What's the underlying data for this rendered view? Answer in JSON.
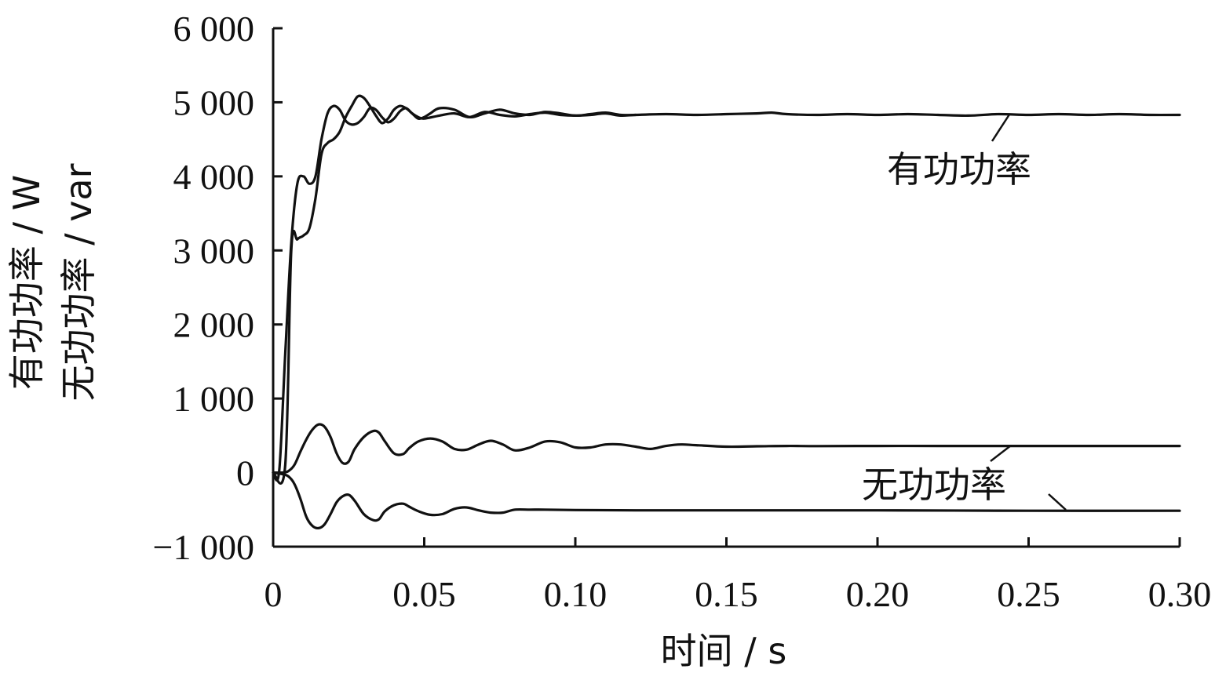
{
  "chart_data": {
    "type": "line",
    "xlabel": "时间 / s",
    "ylabel_lines": [
      "有功功率 / W",
      "无功功率 / var"
    ],
    "xlim": [
      0,
      0.3
    ],
    "ylim": [
      -1000,
      6000
    ],
    "x_ticks": [
      0,
      0.05,
      0.1,
      0.15,
      0.2,
      0.25,
      0.3
    ],
    "x_tick_labels": [
      "0",
      "0.05",
      "0.10",
      "0.15",
      "0.20",
      "0.25",
      "0.30"
    ],
    "y_ticks": [
      -1000,
      0,
      1000,
      2000,
      3000,
      4000,
      5000,
      6000
    ],
    "y_tick_labels": [
      "−1 000",
      "0",
      "1 000",
      "2 000",
      "3 000",
      "4 000",
      "5 000",
      "6 000"
    ],
    "grid": false,
    "annotations": [
      {
        "text": "有功功率",
        "points_to": "active-power"
      },
      {
        "text": "无功功率",
        "points_to": "reactive-power"
      }
    ],
    "series": [
      {
        "id": "active-power-1",
        "x": [
          0,
          0.002,
          0.004,
          0.006,
          0.008,
          0.01,
          0.012,
          0.014,
          0.016,
          0.018,
          0.02,
          0.022,
          0.024,
          0.026,
          0.028,
          0.03,
          0.032,
          0.034,
          0.036,
          0.038,
          0.04,
          0.042,
          0.044,
          0.046,
          0.048,
          0.05,
          0.055,
          0.06,
          0.065,
          0.07,
          0.075,
          0.08,
          0.085,
          0.09,
          0.095,
          0.1,
          0.105,
          0.11,
          0.115,
          0.12,
          0.13,
          0.14,
          0.15,
          0.16,
          0.165,
          0.17,
          0.18,
          0.19,
          0.2,
          0.21,
          0.22,
          0.23,
          0.24,
          0.25,
          0.26,
          0.27,
          0.28,
          0.29,
          0.3
        ],
        "y": [
          0,
          20,
          1600,
          3100,
          3900,
          4000,
          3900,
          4000,
          4500,
          4850,
          4950,
          4900,
          4750,
          4700,
          4720,
          4800,
          4920,
          4900,
          4800,
          4730,
          4780,
          4880,
          4920,
          4850,
          4800,
          4780,
          4820,
          4850,
          4800,
          4870,
          4830,
          4810,
          4840,
          4860,
          4830,
          4820,
          4830,
          4850,
          4820,
          4830,
          4840,
          4830,
          4840,
          4850,
          4860,
          4840,
          4830,
          4840,
          4830,
          4840,
          4830,
          4820,
          4840,
          4830,
          4840,
          4830,
          4840,
          4830,
          4830
        ]
      },
      {
        "id": "active-power-2",
        "x": [
          0,
          0.004,
          0.006,
          0.008,
          0.01,
          0.012,
          0.014,
          0.016,
          0.018,
          0.02,
          0.022,
          0.024,
          0.026,
          0.028,
          0.03,
          0.032,
          0.034,
          0.036,
          0.038,
          0.04,
          0.042,
          0.044,
          0.046,
          0.048,
          0.05,
          0.052,
          0.055,
          0.06,
          0.065,
          0.07,
          0.075,
          0.08,
          0.085,
          0.09,
          0.095,
          0.1,
          0.105,
          0.11,
          0.115,
          0.12
        ],
        "y": [
          0,
          100,
          3000,
          3150,
          3200,
          3300,
          3700,
          4300,
          4450,
          4500,
          4600,
          4800,
          4950,
          5080,
          5060,
          4950,
          4820,
          4720,
          4780,
          4900,
          4950,
          4920,
          4850,
          4780,
          4800,
          4850,
          4920,
          4900,
          4800,
          4850,
          4900,
          4850,
          4830,
          4870,
          4850,
          4820,
          4840,
          4860,
          4830,
          4830
        ]
      },
      {
        "id": "reactive-power-upper",
        "x": [
          0,
          0.003,
          0.005,
          0.007,
          0.009,
          0.011,
          0.013,
          0.015,
          0.017,
          0.019,
          0.021,
          0.023,
          0.025,
          0.027,
          0.03,
          0.033,
          0.035,
          0.037,
          0.04,
          0.043,
          0.045,
          0.048,
          0.052,
          0.056,
          0.06,
          0.064,
          0.068,
          0.072,
          0.076,
          0.08,
          0.085,
          0.09,
          0.095,
          0.1,
          0.105,
          0.11,
          0.115,
          0.12,
          0.125,
          0.13,
          0.135,
          0.14,
          0.15,
          0.16,
          0.17,
          0.18,
          0.2,
          0.22,
          0.24,
          0.26,
          0.28,
          0.3
        ],
        "y": [
          0,
          0,
          20,
          100,
          280,
          450,
          580,
          650,
          620,
          480,
          260,
          130,
          150,
          320,
          480,
          560,
          540,
          420,
          260,
          250,
          330,
          420,
          460,
          420,
          320,
          310,
          380,
          430,
          380,
          300,
          340,
          420,
          410,
          340,
          340,
          380,
          380,
          350,
          320,
          360,
          380,
          370,
          350,
          355,
          360,
          358,
          360,
          360,
          360,
          360,
          360,
          360
        ]
      },
      {
        "id": "reactive-power-lower",
        "x": [
          0,
          0.003,
          0.005,
          0.007,
          0.009,
          0.011,
          0.013,
          0.015,
          0.017,
          0.019,
          0.021,
          0.023,
          0.025,
          0.027,
          0.03,
          0.033,
          0.035,
          0.037,
          0.04,
          0.043,
          0.045,
          0.048,
          0.052,
          0.056,
          0.06,
          0.064,
          0.068,
          0.072,
          0.076,
          0.08,
          0.085,
          0.09,
          0.1,
          0.12,
          0.15,
          0.2,
          0.25,
          0.3
        ],
        "y": [
          0,
          -20,
          -50,
          -150,
          -350,
          -600,
          -720,
          -750,
          -700,
          -560,
          -400,
          -320,
          -300,
          -380,
          -560,
          -640,
          -630,
          -520,
          -440,
          -420,
          -460,
          -520,
          -570,
          -560,
          -490,
          -470,
          -510,
          -540,
          -540,
          -500,
          -500,
          -500,
          -505,
          -510,
          -510,
          -510,
          -515,
          -515
        ]
      }
    ]
  }
}
